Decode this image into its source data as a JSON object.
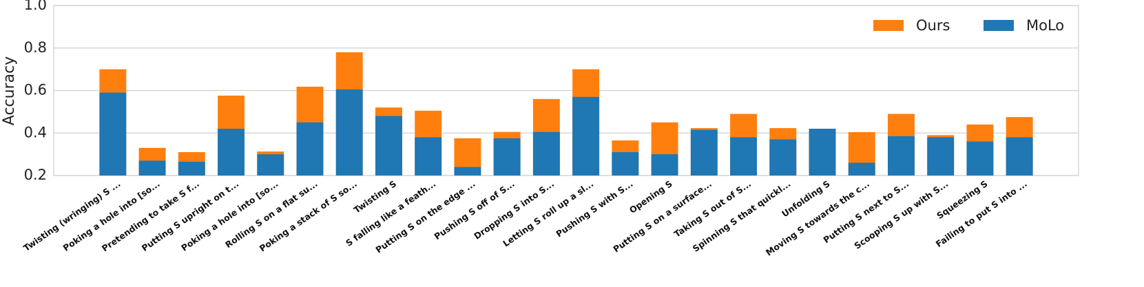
{
  "chart_data": {
    "type": "bar",
    "y_label": "Accuracy",
    "categories": [
      "Twisting (wringing) S ...",
      "Poking a hole into [so...",
      "Pretending to take S f...",
      "Putting S upright on t...",
      "Poking a hole into [so...",
      "Rolling S on a flat su...",
      "Poking a stack of S so...",
      "Twisting S",
      "S falling like a feath...",
      "Putting S on the edge ...",
      "Pushing S off of S...",
      "Dropping S into S...",
      "Letting S roll up a sl...",
      "Pushing S with S...",
      "Opening S",
      "Putting S on a surface...",
      "Taking S out of S...",
      "Spinning S that quickl...",
      "Unfolding S",
      "Moving S towards the c...",
      "Putting S next to S...",
      "Scooping S up with S...",
      "Squeezing S",
      "Failing to put S into ..."
    ],
    "series": [
      {
        "name": "Ours",
        "color": "#ff7f0e",
        "values": [
          0.7,
          0.33,
          0.31,
          0.576,
          0.313,
          0.618,
          0.78,
          0.52,
          0.505,
          0.375,
          0.405,
          0.56,
          0.7,
          0.365,
          0.45,
          0.423,
          0.49,
          0.423,
          0.42,
          0.404,
          0.49,
          0.39,
          0.44,
          0.475
        ]
      },
      {
        "name": "MoLo",
        "color": "#1f77b4",
        "values": [
          0.59,
          0.27,
          0.265,
          0.42,
          0.3,
          0.45,
          0.605,
          0.48,
          0.38,
          0.24,
          0.375,
          0.405,
          0.57,
          0.31,
          0.3,
          0.415,
          0.38,
          0.37,
          0.42,
          0.26,
          0.385,
          0.38,
          0.36,
          0.38
        ]
      }
    ],
    "ylim": [
      0.2,
      1.0
    ],
    "yticks": [
      0.2,
      0.4,
      0.6,
      0.8,
      {
        "value": 1.0,
        "label": "1.0"
      }
    ],
    "grid": true,
    "legend": "upper right"
  }
}
